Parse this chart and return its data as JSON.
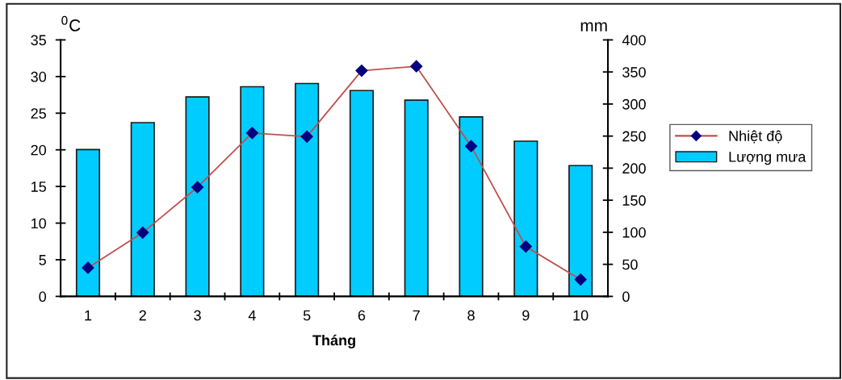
{
  "chart_data": {
    "type": "bar",
    "categories": [
      "1",
      "2",
      "3",
      "4",
      "5",
      "6",
      "7",
      "8",
      "9",
      "10"
    ],
    "xlabel": "Tháng",
    "ylabel": "$^{0}$C",
    "y2label": "mm",
    "series": [
      {
        "name": "Nhiệt độ",
        "type": "line",
        "color": "#c0504d",
        "marker": "diamond",
        "values": [
          3.9,
          8.7,
          14.9,
          22.3,
          21.8,
          30.8,
          31.4,
          20.5,
          6.8,
          2.3
        ]
      },
      {
        "name": "Lượng mưa",
        "axis": "y2",
        "color": "#00ccff",
        "values": [
          229,
          271,
          311,
          327,
          332,
          321,
          306,
          280,
          242,
          204
        ]
      }
    ],
    "ylim": [
      0,
      35
    ],
    "yticks": [
      0,
      5,
      10,
      15,
      20,
      25,
      30,
      35
    ],
    "y2lim": [
      0,
      400
    ],
    "y2ticks": [
      0,
      50,
      100,
      150,
      200,
      250,
      300,
      350,
      400
    ],
    "legend": "right",
    "grid": false
  }
}
